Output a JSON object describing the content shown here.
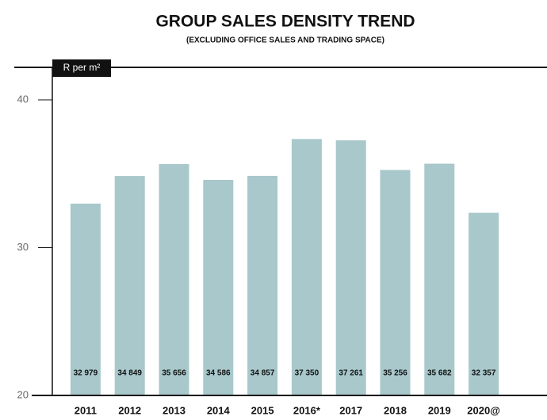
{
  "chart_data": {
    "type": "bar",
    "title": "GROUP SALES DENSITY TREND",
    "subtitle": "(EXCLUDING OFFICE SALES AND TRADING SPACE)",
    "y_label": "R per m²",
    "categories": [
      "2011",
      "2012",
      "2013",
      "2014",
      "2015",
      "2016*",
      "2017",
      "2018",
      "2019",
      "2020@"
    ],
    "values": [
      32979,
      34849,
      35656,
      34586,
      34857,
      37350,
      37261,
      35256,
      35682,
      32357
    ],
    "value_labels": [
      "32 979",
      "34 849",
      "35 656",
      "34 586",
      "34 857",
      "37 350",
      "37 261",
      "35 256",
      "35 682",
      "32 357"
    ],
    "color": "#a8c8cb",
    "ylim": [
      20000,
      42200
    ],
    "yticks": [
      {
        "value": 20000,
        "label": "20"
      },
      {
        "value": 30000,
        "label": "30"
      },
      {
        "value": 40000,
        "label": "40"
      }
    ]
  }
}
